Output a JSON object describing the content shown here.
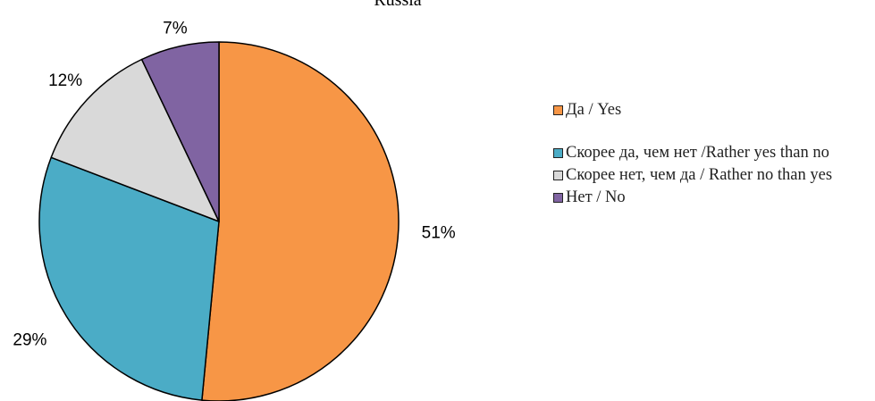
{
  "chart_data": {
    "type": "pie",
    "title": "Russia",
    "slices": [
      {
        "label": "Да / Yes",
        "value": 51,
        "display": "51%",
        "color": "#F79646"
      },
      {
        "label": "Скорее да, чем нет /Rather yes than no",
        "value": 29,
        "display": "29%",
        "color": "#4BACC6"
      },
      {
        "label": "Скорее нет, чем да / Rather no than yes",
        "value": 12,
        "display": "12%",
        "color": "#D9D9D9"
      },
      {
        "label": "Нет / No",
        "value": 7,
        "display": "7%",
        "color": "#8064A2"
      }
    ],
    "legend_position": "right"
  }
}
